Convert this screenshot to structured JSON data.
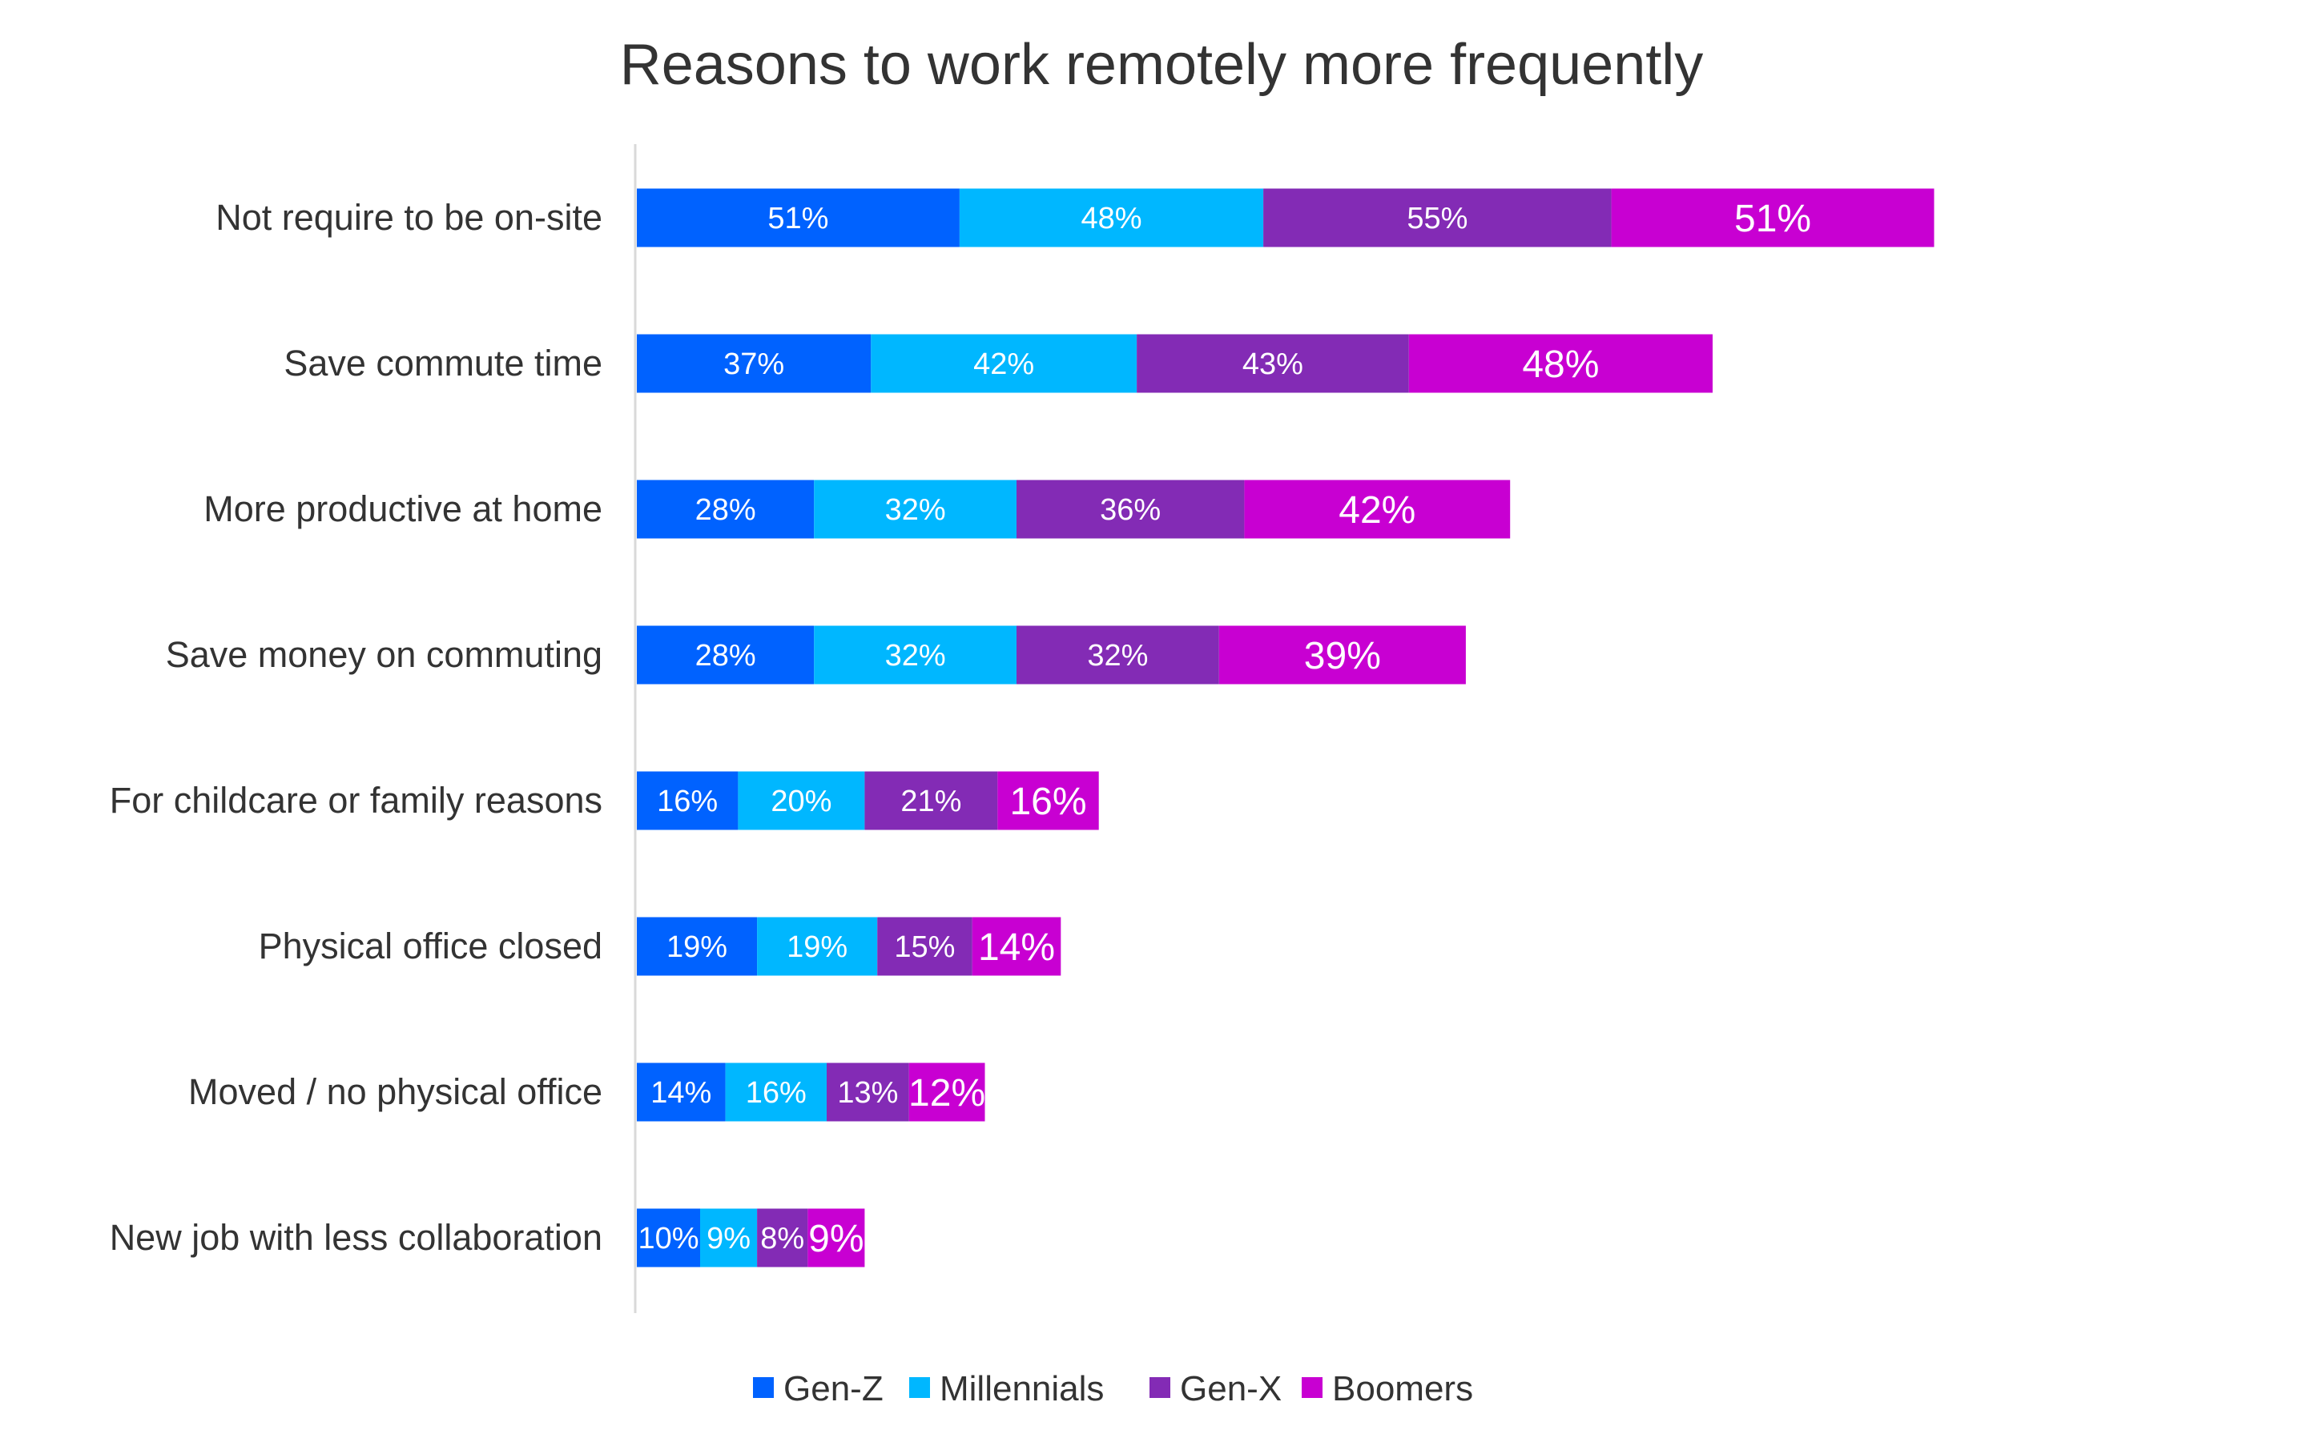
{
  "chart_data": {
    "type": "bar",
    "orientation": "horizontal",
    "stacked": true,
    "title": "Reasons to work remotely more frequently",
    "categories": [
      "Not require to be on-site",
      "Save commute time",
      "More productive at home",
      "Save money on commuting",
      "For childcare or family reasons",
      "Physical office closed",
      "Moved / no physical office",
      "New job with less collaboration"
    ],
    "series": [
      {
        "name": "Gen-Z",
        "color": "#0062FF",
        "values": [
          51,
          37,
          28,
          28,
          16,
          19,
          14,
          10
        ]
      },
      {
        "name": "Millennials",
        "color": "#00B7FF",
        "values": [
          48,
          42,
          32,
          32,
          20,
          19,
          16,
          9
        ]
      },
      {
        "name": "Gen-X",
        "color": "#832BB5",
        "values": [
          55,
          43,
          36,
          32,
          21,
          15,
          13,
          8
        ]
      },
      {
        "name": "Boomers",
        "color": "#C800D2",
        "values": [
          51,
          48,
          42,
          39,
          16,
          14,
          12,
          9
        ]
      }
    ],
    "value_format": "percent",
    "xaxis_visible": false,
    "grid": false,
    "legend": "bottom"
  }
}
